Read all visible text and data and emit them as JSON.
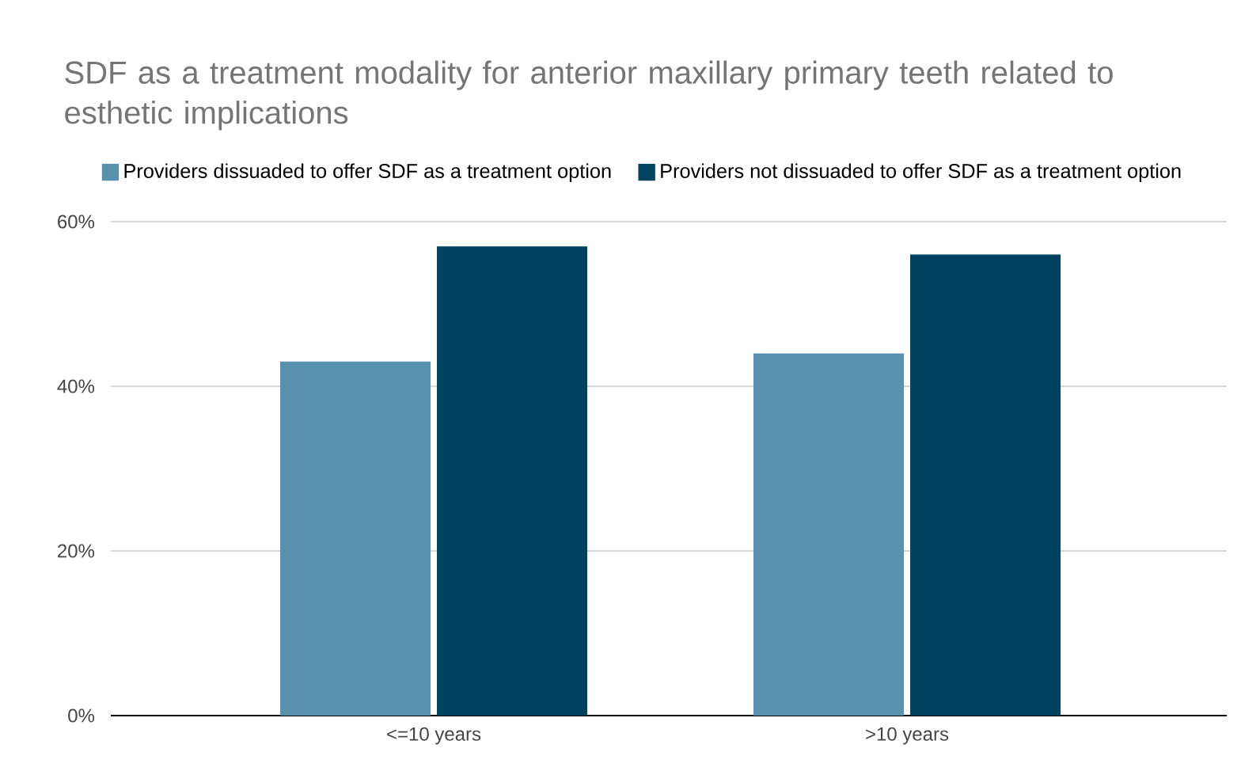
{
  "chart_data": {
    "type": "bar",
    "title": "SDF as a treatment modality for anterior maxillary primary teeth related to esthetic implications",
    "categories": [
      "<=10 years",
      ">10 years"
    ],
    "series": [
      {
        "name": "Providers dissuaded to offer SDF as a treatment option",
        "color": "#5891ae",
        "values": [
          43,
          44
        ]
      },
      {
        "name": "Providers not dissuaded to offer SDF as a treatment option",
        "color": "#004360",
        "values": [
          57,
          56
        ]
      }
    ],
    "ylim": [
      0,
      60
    ],
    "yticks": [
      {
        "value": 0,
        "label": "0%"
      },
      {
        "value": 20,
        "label": "20%"
      },
      {
        "value": 40,
        "label": "40%"
      },
      {
        "value": 60,
        "label": "60%"
      }
    ],
    "grid": "y",
    "legend": "top"
  }
}
